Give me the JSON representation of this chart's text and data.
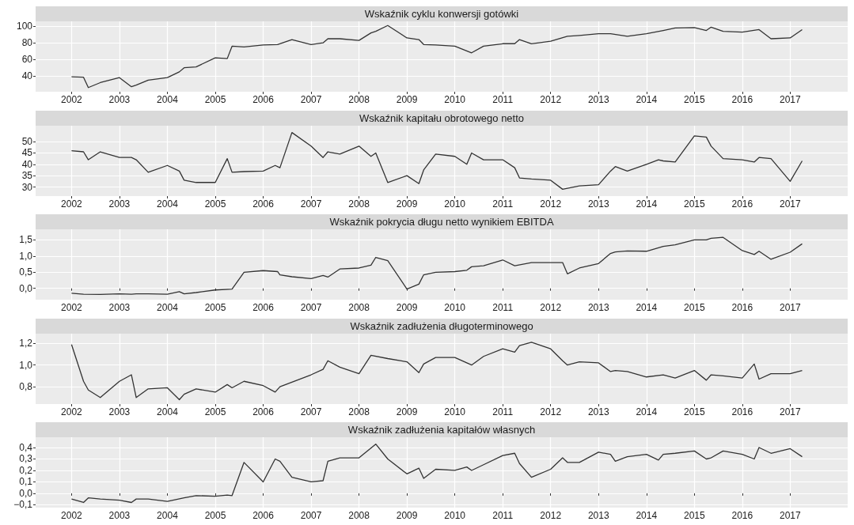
{
  "chart_data": [
    {
      "type": "line",
      "title": "Wskaźnik cyklu konwersji gotówki",
      "color": "#333333",
      "grid": true,
      "xlim": [
        2001.25,
        2018.2
      ],
      "xticks": [
        2002,
        2003,
        2004,
        2005,
        2006,
        2007,
        2008,
        2009,
        2010,
        2011,
        2012,
        2013,
        2014,
        2015,
        2016,
        2017
      ],
      "ylim": [
        21,
        106
      ],
      "yticks": [
        40,
        60,
        80,
        100
      ],
      "x": [
        2002,
        2002.25,
        2002.35,
        2002.6,
        2003,
        2003.25,
        2003.35,
        2003.6,
        2004,
        2004.25,
        2004.35,
        2004.6,
        2005,
        2005.25,
        2005.35,
        2005.6,
        2006,
        2006.3,
        2006.6,
        2007,
        2007.25,
        2007.35,
        2007.6,
        2008,
        2008.25,
        2008.35,
        2008.6,
        2009,
        2009.25,
        2009.35,
        2009.6,
        2010,
        2010.35,
        2010.6,
        2011,
        2011.25,
        2011.35,
        2011.6,
        2012,
        2012.35,
        2012.6,
        2013,
        2013.25,
        2013.6,
        2014,
        2014.35,
        2014.6,
        2015,
        2015.25,
        2015.35,
        2015.6,
        2016,
        2016.35,
        2016.6,
        2017,
        2017.25
      ],
      "values": [
        39,
        38.5,
        26,
        32,
        38,
        27,
        29,
        35,
        38,
        45,
        50,
        51,
        62,
        61,
        76,
        75,
        77.5,
        78,
        84,
        78,
        80,
        85,
        85,
        83,
        92,
        94,
        101,
        86,
        84,
        78,
        77.5,
        76,
        68,
        76,
        79,
        79,
        84,
        79,
        82,
        88,
        89,
        91,
        91,
        88,
        91,
        95,
        98,
        98.5,
        95,
        99,
        94,
        93,
        96,
        85,
        86,
        96
      ]
    },
    {
      "type": "line",
      "title": "Wskaźnik kapitału obrotowego netto",
      "color": "#333333",
      "grid": true,
      "xlim": [
        2001.25,
        2018.2
      ],
      "xticks": [
        2002,
        2003,
        2004,
        2005,
        2006,
        2007,
        2008,
        2009,
        2010,
        2011,
        2012,
        2013,
        2014,
        2015,
        2016,
        2017
      ],
      "ylim": [
        26,
        57
      ],
      "yticks": [
        30,
        35,
        40,
        45,
        50
      ],
      "x": [
        2002,
        2002.25,
        2002.35,
        2002.6,
        2003,
        2003.25,
        2003.35,
        2003.6,
        2004,
        2004.25,
        2004.35,
        2004.6,
        2005,
        2005.25,
        2005.35,
        2005.6,
        2006,
        2006.25,
        2006.35,
        2006.6,
        2007,
        2007.25,
        2007.35,
        2007.6,
        2008,
        2008.25,
        2008.35,
        2008.6,
        2009,
        2009.25,
        2009.35,
        2009.6,
        2010,
        2010.25,
        2010.35,
        2010.6,
        2011,
        2011.25,
        2011.35,
        2011.6,
        2012,
        2012.25,
        2012.6,
        2013,
        2013.25,
        2013.35,
        2013.6,
        2014,
        2014.25,
        2014.35,
        2014.6,
        2015,
        2015.25,
        2015.35,
        2015.6,
        2016,
        2016.25,
        2016.35,
        2016.6,
        2017,
        2017.25
      ],
      "values": [
        46,
        45.5,
        42,
        45.5,
        43,
        43,
        42,
        36.5,
        39.5,
        37,
        33,
        32,
        32,
        42.5,
        36.5,
        36.8,
        37,
        39.5,
        38.5,
        54,
        48,
        43,
        45.5,
        44.5,
        48,
        43.5,
        45,
        32,
        35,
        31.5,
        37.5,
        44.5,
        43.5,
        40,
        45,
        42,
        42,
        38.5,
        34,
        33.5,
        33,
        29,
        30.5,
        31,
        37,
        39,
        37,
        40,
        42,
        41.5,
        41,
        52.5,
        52,
        48,
        42.5,
        42,
        41,
        43,
        42.5,
        32.5,
        41.5
      ]
    },
    {
      "type": "line",
      "title": "Wskaźnik pokrycia długu netto wynikiem EBITDA",
      "color": "#333333",
      "grid": true,
      "xlim": [
        2001.25,
        2018.2
      ],
      "xticks": [
        2002,
        2003,
        2004,
        2005,
        2006,
        2007,
        2008,
        2009,
        2010,
        2011,
        2012,
        2013,
        2014,
        2015,
        2016,
        2017
      ],
      "ylim": [
        -0.35,
        1.83
      ],
      "yticks": [
        {
          "value": 0,
          "label": "0,0"
        },
        {
          "value": 0.5,
          "label": "0,5"
        },
        {
          "value": 1,
          "label": "1,0"
        },
        {
          "value": 1.5,
          "label": "1,5"
        }
      ],
      "x": [
        2002,
        2002.25,
        2002.6,
        2003,
        2003.25,
        2003.35,
        2003.6,
        2004,
        2004.25,
        2004.35,
        2004.6,
        2005,
        2005.35,
        2005.6,
        2006,
        2006.3,
        2006.35,
        2006.6,
        2007,
        2007.25,
        2007.35,
        2007.6,
        2008,
        2008.25,
        2008.35,
        2008.6,
        2009,
        2009.25,
        2009.35,
        2009.6,
        2010,
        2010.25,
        2010.35,
        2010.6,
        2011,
        2011.25,
        2011.6,
        2012,
        2012.25,
        2012.35,
        2012.6,
        2013,
        2013.25,
        2013.35,
        2013.6,
        2014,
        2014.35,
        2014.6,
        2015,
        2015.25,
        2015.35,
        2015.6,
        2016,
        2016.25,
        2016.35,
        2016.6,
        2017,
        2017.25
      ],
      "values": [
        -0.15,
        -0.18,
        -0.19,
        -0.17,
        -0.18,
        -0.17,
        -0.17,
        -0.18,
        -0.1,
        -0.17,
        -0.13,
        -0.05,
        -0.02,
        0.5,
        0.55,
        0.52,
        0.42,
        0.36,
        0.3,
        0.4,
        0.35,
        0.6,
        0.63,
        0.72,
        0.96,
        0.86,
        -0.02,
        0.13,
        0.42,
        0.5,
        0.52,
        0.56,
        0.67,
        0.7,
        0.88,
        0.7,
        0.8,
        0.8,
        0.8,
        0.45,
        0.63,
        0.77,
        1.08,
        1.13,
        1.16,
        1.15,
        1.3,
        1.35,
        1.5,
        1.5,
        1.55,
        1.58,
        1.17,
        1.05,
        1.15,
        0.9,
        1.12,
        1.38
      ]
    },
    {
      "type": "line",
      "title": "Wskaźnik zadłużenia długoterminowego",
      "color": "#333333",
      "grid": true,
      "xlim": [
        2001.25,
        2018.2
      ],
      "xticks": [
        2002,
        2003,
        2004,
        2005,
        2006,
        2007,
        2008,
        2009,
        2010,
        2011,
        2012,
        2013,
        2014,
        2015,
        2016,
        2017
      ],
      "ylim": [
        0.64,
        1.29
      ],
      "yticks": [
        {
          "value": 0.8,
          "label": "0,8"
        },
        {
          "value": 1,
          "label": "1,0"
        },
        {
          "value": 1.2,
          "label": "1,2"
        }
      ],
      "x": [
        2002,
        2002.25,
        2002.35,
        2002.6,
        2003,
        2003.25,
        2003.35,
        2003.6,
        2004,
        2004.25,
        2004.35,
        2004.6,
        2005,
        2005.25,
        2005.35,
        2005.6,
        2006,
        2006.25,
        2006.35,
        2007,
        2007.25,
        2007.35,
        2007.6,
        2008,
        2008.25,
        2008.6,
        2009,
        2009.25,
        2009.35,
        2009.6,
        2010,
        2010.35,
        2010.6,
        2011,
        2011.25,
        2011.35,
        2011.6,
        2012,
        2012.25,
        2012.35,
        2012.6,
        2013,
        2013.25,
        2013.35,
        2013.6,
        2014,
        2014.35,
        2014.6,
        2015,
        2015.25,
        2015.35,
        2015.6,
        2016,
        2016.25,
        2016.35,
        2016.6,
        2017,
        2017.25
      ],
      "values": [
        1.19,
        0.85,
        0.77,
        0.7,
        0.85,
        0.91,
        0.7,
        0.78,
        0.79,
        0.68,
        0.73,
        0.78,
        0.75,
        0.82,
        0.79,
        0.85,
        0.81,
        0.75,
        0.8,
        0.91,
        0.96,
        1.04,
        0.98,
        0.92,
        1.09,
        1.06,
        1.03,
        0.93,
        1.01,
        1.07,
        1.07,
        1,
        1.08,
        1.15,
        1.12,
        1.18,
        1.21,
        1.15,
        1.04,
        1,
        1.03,
        1.02,
        0.94,
        0.95,
        0.94,
        0.89,
        0.91,
        0.88,
        0.95,
        0.86,
        0.91,
        0.9,
        0.88,
        1.01,
        0.87,
        0.92,
        0.92,
        0.95
      ]
    },
    {
      "type": "line",
      "title": "Wskaźnik zadłużenia kapitałów własnych",
      "color": "#333333",
      "grid": true,
      "xlim": [
        2001.25,
        2018.2
      ],
      "xticks": [
        2002,
        2003,
        2004,
        2005,
        2006,
        2007,
        2008,
        2009,
        2010,
        2011,
        2012,
        2013,
        2014,
        2015,
        2016,
        2017
      ],
      "ylim": [
        -0.125,
        0.49
      ],
      "yticks": [
        {
          "value": -0.1,
          "label": "−0,1"
        },
        {
          "value": 0,
          "label": "0,0"
        },
        {
          "value": 0.1,
          "label": "0,1"
        },
        {
          "value": 0.2,
          "label": "0,2"
        },
        {
          "value": 0.3,
          "label": "0,3"
        },
        {
          "value": 0.4,
          "label": "0,4"
        }
      ],
      "x": [
        2002,
        2002.25,
        2002.35,
        2002.6,
        2003,
        2003.25,
        2003.35,
        2003.6,
        2004,
        2004.35,
        2004.6,
        2005,
        2005.25,
        2005.35,
        2005.6,
        2006,
        2006.25,
        2006.35,
        2006.6,
        2007,
        2007.25,
        2007.35,
        2007.6,
        2008,
        2008.35,
        2008.6,
        2009,
        2009.25,
        2009.35,
        2009.6,
        2010,
        2010.25,
        2010.35,
        2010.6,
        2011,
        2011.25,
        2011.35,
        2011.6,
        2012,
        2012.25,
        2012.35,
        2012.6,
        2013,
        2013.25,
        2013.35,
        2013.6,
        2014,
        2014.25,
        2014.35,
        2014.6,
        2015,
        2015.25,
        2015.35,
        2015.6,
        2016,
        2016.25,
        2016.35,
        2016.6,
        2017,
        2017.25
      ],
      "values": [
        -0.05,
        -0.08,
        -0.04,
        -0.05,
        -0.06,
        -0.08,
        -0.05,
        -0.05,
        -0.07,
        -0.04,
        -0.02,
        -0.025,
        -0.015,
        -0.02,
        0.27,
        0.1,
        0.3,
        0.28,
        0.14,
        0.1,
        0.11,
        0.28,
        0.31,
        0.31,
        0.43,
        0.3,
        0.17,
        0.22,
        0.13,
        0.21,
        0.2,
        0.23,
        0.2,
        0.25,
        0.33,
        0.35,
        0.26,
        0.14,
        0.21,
        0.31,
        0.27,
        0.27,
        0.36,
        0.34,
        0.28,
        0.32,
        0.34,
        0.29,
        0.34,
        0.35,
        0.37,
        0.3,
        0.31,
        0.37,
        0.34,
        0.3,
        0.4,
        0.35,
        0.39,
        0.32
      ]
    }
  ]
}
